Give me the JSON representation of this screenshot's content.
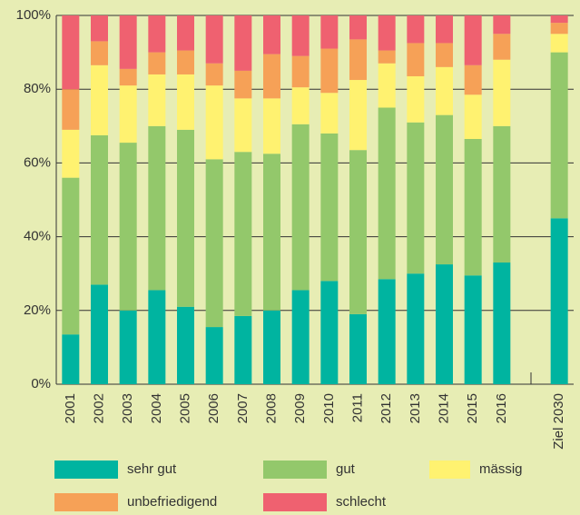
{
  "chart_data": {
    "type": "stacked_bar",
    "categories": [
      "2001",
      "2002",
      "2003",
      "2004",
      "2005",
      "2006",
      "2007",
      "2008",
      "2009",
      "2010",
      "2011",
      "2012",
      "2013",
      "2014",
      "2015",
      "2016",
      null,
      "Ziel 2030"
    ],
    "series": [
      {
        "name": "sehr gut",
        "color": "#00b4a0",
        "values": [
          13.5,
          27,
          20,
          25.5,
          21,
          15.5,
          18.5,
          20,
          25.5,
          28,
          19,
          28.5,
          30,
          32.5,
          29.5,
          33,
          null,
          45
        ]
      },
      {
        "name": "gut",
        "color": "#93c86b",
        "values": [
          42.5,
          40.5,
          45.5,
          44.5,
          48,
          45.5,
          44.5,
          42.5,
          45,
          40,
          44.5,
          46.5,
          41,
          40.5,
          37,
          37,
          null,
          45
        ]
      },
      {
        "name": "mässig",
        "color": "#fff270",
        "values": [
          13,
          19,
          15.5,
          14,
          15,
          20,
          14.5,
          15,
          10,
          11,
          19,
          12,
          12.5,
          13,
          12,
          18,
          null,
          5
        ]
      },
      {
        "name": "unbefriedigend",
        "color": "#f6a157",
        "values": [
          11,
          6.5,
          4.5,
          6,
          6.5,
          6,
          7.5,
          12,
          8.5,
          12,
          11,
          3.5,
          9,
          6.5,
          8,
          7,
          null,
          3
        ]
      },
      {
        "name": "schlecht",
        "color": "#ef6170",
        "values": [
          20,
          7,
          14.5,
          10,
          9.5,
          13,
          15,
          10.5,
          11,
          9,
          6.5,
          9.5,
          7.5,
          7.5,
          13.5,
          5,
          null,
          2
        ]
      }
    ],
    "ylim": [
      0,
      100
    ],
    "yticks": [
      {
        "value": 0,
        "label": "0%"
      },
      {
        "value": 20,
        "label": "20%"
      },
      {
        "value": 40,
        "label": "40%"
      },
      {
        "value": 60,
        "label": "60%"
      },
      {
        "value": 80,
        "label": "80%"
      },
      {
        "value": 100,
        "label": "100%"
      }
    ],
    "grid": true
  }
}
